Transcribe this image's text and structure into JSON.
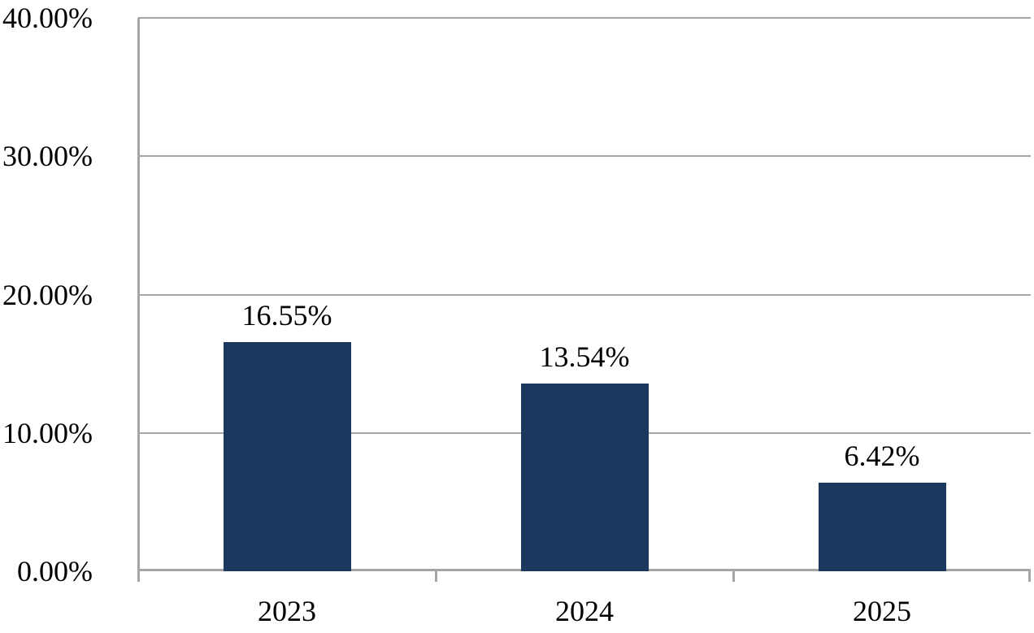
{
  "chart_data": {
    "type": "bar",
    "title": "",
    "xlabel": "",
    "ylabel": "",
    "categories": [
      "2023",
      "2024",
      "2025"
    ],
    "values": [
      16.55,
      13.54,
      6.42
    ],
    "data_labels": [
      "16.55%",
      "13.54%",
      "6.42%"
    ],
    "ylim": [
      0,
      40
    ],
    "y_tick_step": 10,
    "y_tick_values": [
      40,
      30,
      20,
      10,
      0
    ],
    "y_tick_labels": [
      "40.00%",
      "30.00%",
      "20.00%",
      "10.00%",
      "0.00%"
    ],
    "grid": "horizontal",
    "legend": "none",
    "colors": {
      "bar": "#1B395E",
      "grid": "#A6A6A6",
      "axis": "#A6A6A6",
      "text": "#000000",
      "background": "#FFFFFF"
    }
  }
}
